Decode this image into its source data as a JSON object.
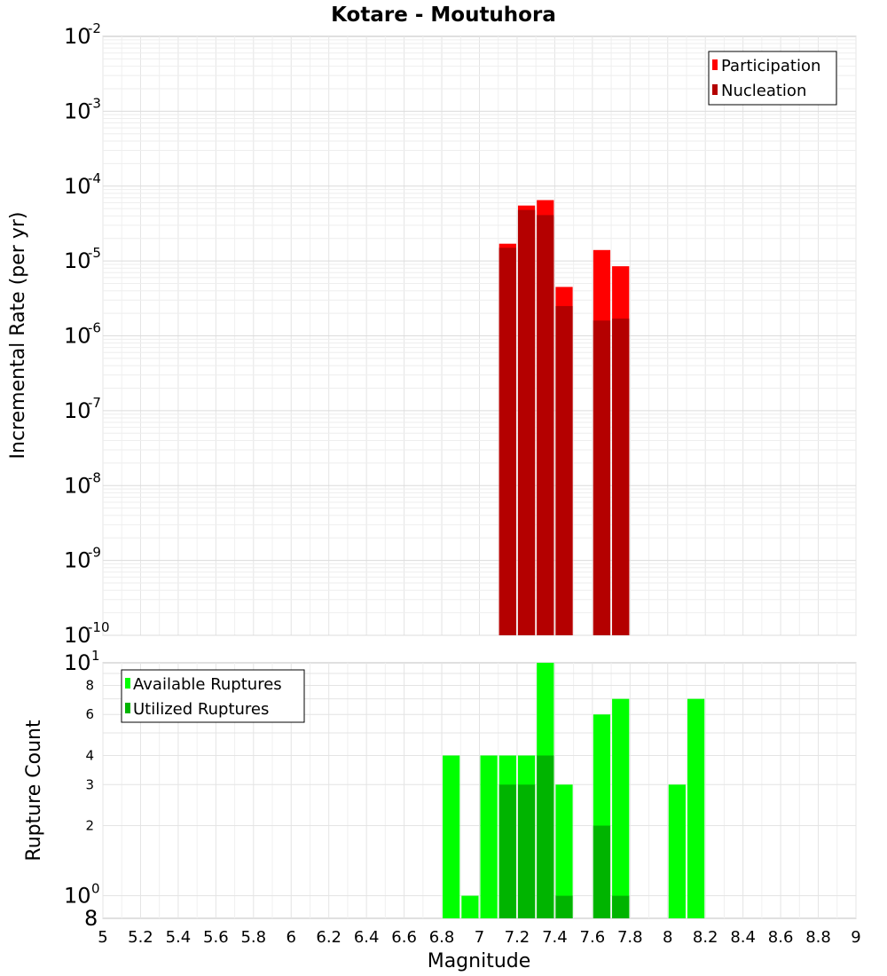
{
  "chart_data": [
    {
      "type": "bar",
      "title": "Kotare - Moutuhora",
      "xlabel": "",
      "ylabel": "Incremental Rate (per yr)",
      "yscale": "log",
      "xlim": [
        5,
        9
      ],
      "ylim": [
        1e-10,
        0.01
      ],
      "bin_width": 0.1,
      "y_tick_labels": [
        {
          "base": "10",
          "exp": "-10",
          "value": 1e-10
        },
        {
          "base": "10",
          "exp": "-9",
          "value": 1e-09
        },
        {
          "base": "10",
          "exp": "-8",
          "value": 1e-08
        },
        {
          "base": "10",
          "exp": "-7",
          "value": 1e-07
        },
        {
          "base": "10",
          "exp": "-6",
          "value": 1e-06
        },
        {
          "base": "10",
          "exp": "-5",
          "value": 1e-05
        },
        {
          "base": "10",
          "exp": "-4",
          "value": 0.0001
        },
        {
          "base": "10",
          "exp": "-3",
          "value": 0.001
        },
        {
          "base": "10",
          "exp": "-2",
          "value": 0.01
        }
      ],
      "legend": {
        "position": "top-right",
        "entries": [
          "Participation",
          "Nucleation"
        ]
      },
      "series": [
        {
          "name": "Participation",
          "color": "#ff0000",
          "points": [
            {
              "x": 7.15,
              "y": 1.7e-05
            },
            {
              "x": 7.25,
              "y": 5.5e-05
            },
            {
              "x": 7.35,
              "y": 6.5e-05
            },
            {
              "x": 7.45,
              "y": 4.5e-06
            },
            {
              "x": 7.65,
              "y": 1.4e-05
            },
            {
              "x": 7.75,
              "y": 8.5e-06
            }
          ]
        },
        {
          "name": "Nucleation",
          "color": "#b40000",
          "points": [
            {
              "x": 7.15,
              "y": 1.5e-05
            },
            {
              "x": 7.25,
              "y": 4.8e-05
            },
            {
              "x": 7.35,
              "y": 4.1e-05
            },
            {
              "x": 7.45,
              "y": 2.5e-06
            },
            {
              "x": 7.65,
              "y": 1.6e-06
            },
            {
              "x": 7.75,
              "y": 1.7e-06
            }
          ]
        }
      ]
    },
    {
      "type": "bar",
      "title": "",
      "xlabel": "Magnitude",
      "ylabel": "Rupture Count",
      "yscale": "log",
      "xlim": [
        5,
        9
      ],
      "ylim": [
        0.8,
        10
      ],
      "bin_width": 0.1,
      "x_tick_labels": [
        "5",
        "5.2",
        "5.4",
        "5.6",
        "5.8",
        "6",
        "6.2",
        "6.4",
        "6.6",
        "6.8",
        "7",
        "7.2",
        "7.4",
        "7.6",
        "7.8",
        "8",
        "8.2",
        "8.4",
        "8.6",
        "8.8",
        "9"
      ],
      "y_major_ticks": [
        {
          "base": "10",
          "exp": "0",
          "value": 1
        },
        {
          "base": "10",
          "exp": "1",
          "value": 10
        }
      ],
      "y_minor_ticks": [
        {
          "label": "2",
          "value": 2
        },
        {
          "label": "3",
          "value": 3
        },
        {
          "label": "4",
          "value": 4
        },
        {
          "label": "6",
          "value": 6
        },
        {
          "label": "8",
          "value": 8
        }
      ],
      "y_bottom_label": {
        "label": "8",
        "value": 0.8
      },
      "legend": {
        "position": "top-left",
        "entries": [
          "Available Ruptures",
          "Utilized Ruptures"
        ]
      },
      "series": [
        {
          "name": "Available Ruptures",
          "color": "#00ff00",
          "points": [
            {
              "x": 6.85,
              "y": 4
            },
            {
              "x": 6.95,
              "y": 1
            },
            {
              "x": 7.05,
              "y": 4
            },
            {
              "x": 7.15,
              "y": 4
            },
            {
              "x": 7.25,
              "y": 4
            },
            {
              "x": 7.35,
              "y": 10
            },
            {
              "x": 7.45,
              "y": 3
            },
            {
              "x": 7.65,
              "y": 6
            },
            {
              "x": 7.75,
              "y": 7
            },
            {
              "x": 8.05,
              "y": 3
            },
            {
              "x": 8.15,
              "y": 7
            }
          ]
        },
        {
          "name": "Utilized Ruptures",
          "color": "#00b400",
          "points": [
            {
              "x": 7.15,
              "y": 3
            },
            {
              "x": 7.25,
              "y": 3
            },
            {
              "x": 7.35,
              "y": 4
            },
            {
              "x": 7.45,
              "y": 1
            },
            {
              "x": 7.65,
              "y": 2
            },
            {
              "x": 7.75,
              "y": 1
            }
          ]
        }
      ]
    }
  ]
}
